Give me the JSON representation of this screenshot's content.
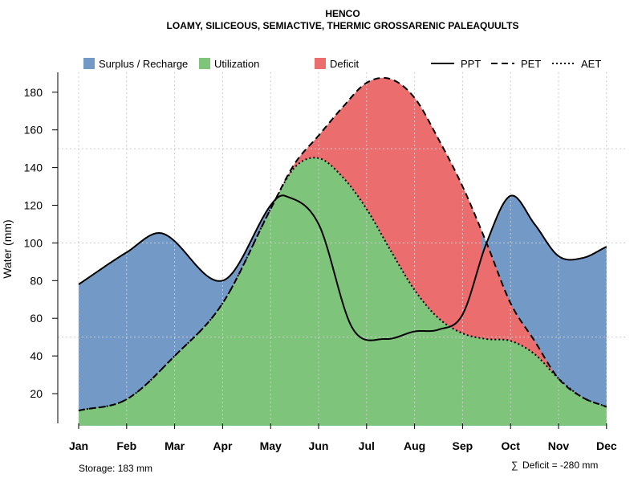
{
  "colors": {
    "surplus": "#7399c6",
    "utilization": "#7ec57b",
    "deficit": "#ec6d6d",
    "grid": "#cccccc",
    "line": "#000000"
  },
  "chart_data": {
    "type": "area",
    "title": "HENCO",
    "subtitle": "LOAMY, SILICEOUS, SEMIACTIVE, THERMIC GROSSARENIC PALEAQUULTS",
    "ylabel": "Water (mm)",
    "xlabel": "",
    "ylim": [
      3,
      191
    ],
    "yticks": [
      20,
      40,
      60,
      80,
      100,
      120,
      140,
      160,
      180
    ],
    "categories": [
      "Jan",
      "Feb",
      "Mar",
      "Apr",
      "May",
      "Jun",
      "Jul",
      "Aug",
      "Sep",
      "Oct",
      "Nov",
      "Dec"
    ],
    "series": [
      {
        "name": "PPT",
        "style": "solid",
        "x": [
          1,
          2,
          2.75,
          4,
          5,
          5.3,
          6,
          6.7,
          7.4,
          8,
          8.5,
          9,
          9.5,
          10,
          10.5,
          11,
          11.5,
          12
        ],
        "values": [
          78,
          95,
          105,
          80,
          120,
          125,
          110,
          55,
          49,
          53,
          54,
          62,
          100,
          125,
          110,
          93,
          92,
          98
        ]
      },
      {
        "name": "PET",
        "style": "dashed",
        "x": [
          1,
          2,
          3,
          4,
          5,
          5.5,
          6,
          6.5,
          7,
          7.5,
          8,
          8.5,
          9,
          9.5,
          10,
          10.5,
          11,
          11.5,
          12
        ],
        "values": [
          11,
          17,
          40,
          68,
          118,
          142,
          157,
          172,
          185,
          187,
          177,
          155,
          130,
          100,
          68,
          48,
          28,
          18,
          13
        ]
      },
      {
        "name": "AET",
        "style": "dotted",
        "x": [
          1,
          2,
          3,
          4,
          5,
          5.5,
          6,
          6.5,
          7,
          7.5,
          8,
          8.5,
          9,
          9.5,
          10,
          10.5,
          11,
          11.5,
          12
        ],
        "values": [
          11,
          17,
          40,
          68,
          118,
          140,
          145,
          135,
          118,
          96,
          75,
          60,
          52,
          49,
          48,
          41,
          28,
          18,
          13
        ]
      }
    ],
    "legend": {
      "position": "top",
      "fills": [
        "Surplus / Recharge",
        "Utilization",
        "Deficit"
      ],
      "lines": [
        "PPT",
        "PET",
        "AET"
      ]
    },
    "grid": true
  },
  "footer": {
    "storage": "Storage: 183 mm",
    "deficit_symbol": "∑",
    "deficit": "Deficit = -280 mm"
  }
}
